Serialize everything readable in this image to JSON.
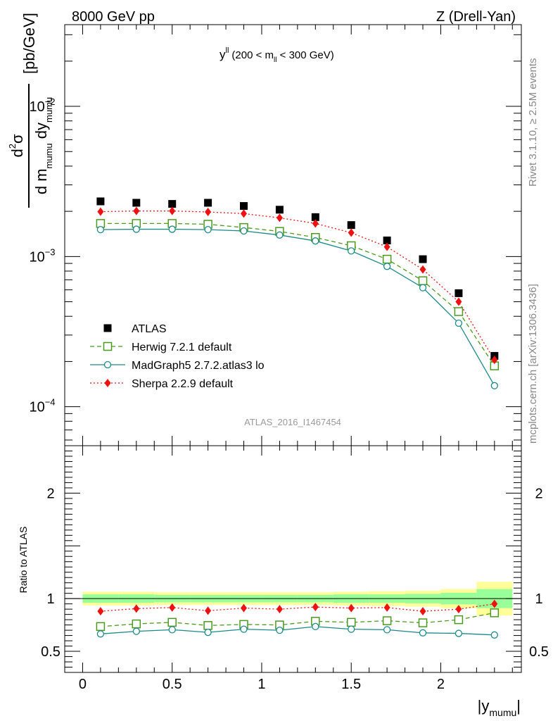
{
  "header": {
    "left": "8000 GeV pp",
    "right": "Z (Drell-Yan)"
  },
  "side_labels": {
    "rivet": "Rivet 3.1.10, ≥ 2.5M events",
    "mcplots": "mcplots.cern.ch [arXiv:1306.3436]"
  },
  "watermark": "ATLAS_2016_I1467454",
  "plot_title": {
    "var": "y",
    "var_sup": "ll",
    "range_pre": "(200 < m",
    "range_sub": "ll",
    "range_post": " < 300 GeV)"
  },
  "ylabel_main": {
    "num": "d",
    "num_sup": "2",
    "num_sym": "σ",
    "den_d": "d m",
    "den_sub1": "mumu",
    "den_dy": " dy",
    "den_sub2": "mumu",
    "units": "[pb/GeV]"
  },
  "ylabel_ratio": "Ratio to ATLAS",
  "xlabel": {
    "pre": "|y",
    "sub": "mumu",
    "post": "|"
  },
  "chart_data": {
    "type": "scatter",
    "x": [
      0.1,
      0.3,
      0.5,
      0.7,
      0.9,
      1.1,
      1.3,
      1.5,
      1.7,
      1.9,
      2.1,
      2.3
    ],
    "x_edges": [
      0,
      0.2,
      0.4,
      0.6,
      0.8,
      1.0,
      1.2,
      1.4,
      1.6,
      1.8,
      2.0,
      2.2,
      2.4
    ],
    "xlim": [
      -0.1,
      2.45
    ],
    "x_ticks": [
      0,
      0.5,
      1,
      1.5,
      2
    ],
    "x_tick_labels": [
      "0",
      "0.5",
      "1",
      "1.5",
      "2"
    ],
    "main": {
      "yscale": "log",
      "ylim": [
        5.5e-05,
        0.035
      ],
      "y_ticks": [
        0.0001,
        0.001,
        0.01
      ],
      "y_tick_labels": [
        {
          "base": "10",
          "exp": "−4"
        },
        {
          "base": "10",
          "exp": "−3"
        },
        {
          "base": "10",
          "exp": "−2"
        }
      ],
      "series": [
        {
          "name": "ATLAS",
          "marker": "filled-square",
          "color": "#000000",
          "values": [
            0.00233,
            0.00228,
            0.00224,
            0.00228,
            0.00217,
            0.00205,
            0.00183,
            0.00162,
            0.00128,
            0.00096,
            0.00057,
            0.000218
          ]
        },
        {
          "name": "Herwig 7.2.1 default",
          "marker": "open-square",
          "line": "dashed",
          "color": "#4a9a1e",
          "values": [
            0.00166,
            0.00166,
            0.00166,
            0.00164,
            0.00156,
            0.00147,
            0.00134,
            0.00118,
            0.00096,
            0.00069,
            0.00043,
            0.000187
          ]
        },
        {
          "name": "MadGraph5 2.7.2.atlas3 lo",
          "marker": "open-circle",
          "line": "solid",
          "color": "#1a8a8a",
          "values": [
            0.00151,
            0.00152,
            0.00152,
            0.00151,
            0.00148,
            0.00139,
            0.00127,
            0.00109,
            0.00086,
            0.00062,
            0.00036,
            0.000138
          ]
        },
        {
          "name": "Sherpa 2.2.9 default",
          "marker": "filled-diamond",
          "line": "dotted",
          "color": "#ee1111",
          "values": [
            0.00199,
            0.00201,
            0.00201,
            0.00198,
            0.00193,
            0.00181,
            0.00166,
            0.00144,
            0.00116,
            0.00082,
            0.0005,
            0.000205
          ]
        }
      ]
    },
    "ratio": {
      "ylim": [
        0.3,
        2.45
      ],
      "y_ticks": [
        0.5,
        1,
        2
      ],
      "y_tick_labels": [
        "0.5",
        "1",
        "2"
      ],
      "band_yellow_halfwidth": [
        0.065,
        0.065,
        0.06,
        0.06,
        0.06,
        0.06,
        0.06,
        0.065,
        0.07,
        0.075,
        0.09,
        0.16
      ],
      "band_green_halfwidth": [
        0.04,
        0.04,
        0.035,
        0.035,
        0.035,
        0.035,
        0.035,
        0.04,
        0.04,
        0.045,
        0.055,
        0.09
      ],
      "series": [
        {
          "name": "Herwig 7.2.1 default",
          "values": [
            0.735,
            0.76,
            0.775,
            0.745,
            0.755,
            0.75,
            0.785,
            0.775,
            0.79,
            0.77,
            0.8,
            0.865
          ]
        },
        {
          "name": "MadGraph5 2.7.2.atlas3 lo",
          "values": [
            0.665,
            0.69,
            0.705,
            0.68,
            0.71,
            0.7,
            0.735,
            0.71,
            0.705,
            0.675,
            0.67,
            0.655
          ]
        },
        {
          "name": "Sherpa 2.2.9 default",
          "values": [
            0.88,
            0.905,
            0.915,
            0.885,
            0.91,
            0.9,
            0.92,
            0.91,
            0.915,
            0.88,
            0.9,
            0.95
          ]
        }
      ]
    },
    "legend": {
      "position": "lower-left",
      "entries": [
        "ATLAS",
        "Herwig 7.2.1 default",
        "MadGraph5 2.7.2.atlas3 lo",
        "Sherpa 2.2.9 default"
      ]
    }
  }
}
